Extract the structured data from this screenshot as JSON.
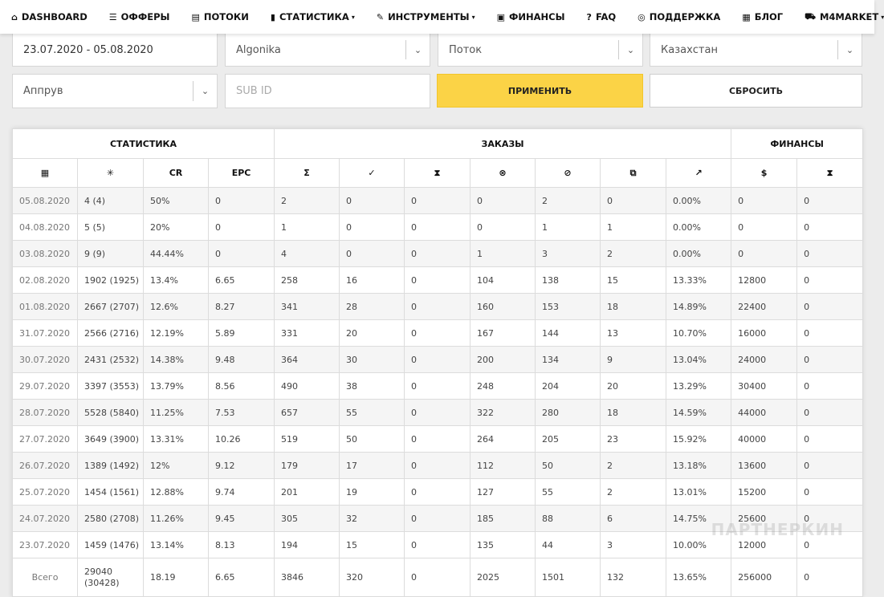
{
  "nav": [
    {
      "icon": "⌂",
      "icon_name": "home-icon",
      "label": "DASHBOARD",
      "dropdown": false
    },
    {
      "icon": "☰",
      "icon_name": "list-icon",
      "label": "ОФФЕРЫ",
      "dropdown": false
    },
    {
      "icon": "▤",
      "icon_name": "stack-icon",
      "label": "ПОТОКИ",
      "dropdown": false
    },
    {
      "icon": "▮",
      "icon_name": "bar-chart-icon",
      "label": "СТАТИСТИКА",
      "dropdown": true
    },
    {
      "icon": "✎",
      "icon_name": "wrench-icon",
      "label": "ИНСТРУМЕНТЫ",
      "dropdown": true
    },
    {
      "icon": "▣",
      "icon_name": "money-icon",
      "label": "ФИНАНСЫ",
      "dropdown": false
    },
    {
      "icon": "?",
      "icon_name": "question-icon",
      "label": "FAQ",
      "dropdown": false
    },
    {
      "icon": "◎",
      "icon_name": "support-icon",
      "label": "ПОДДЕРЖКА",
      "dropdown": false
    },
    {
      "icon": "▦",
      "icon_name": "newspaper-icon",
      "label": "БЛОГ",
      "dropdown": false
    },
    {
      "icon": "⛟",
      "icon_name": "cart-icon",
      "label": "M4MARKET",
      "dropdown": true
    }
  ],
  "filters": {
    "date_range": "23.07.2020 - 05.08.2020",
    "offer": "Algonika",
    "stream": "Поток",
    "country": "Казахстан",
    "status": "Аппрув",
    "subid_placeholder": "SUB ID",
    "apply_label": "ПРИМЕНИТЬ",
    "reset_label": "СБРОСИТЬ"
  },
  "table": {
    "groups": {
      "stats": "СТАТИСТИКА",
      "orders": "ЗАКАЗЫ",
      "finance": "ФИНАНСЫ"
    },
    "col_headers": [
      {
        "text": "▦",
        "name": "calendar-icon",
        "cls": "ic-dark"
      },
      {
        "text": "✳",
        "name": "click-icon",
        "cls": "ic-dark"
      },
      {
        "text": "CR",
        "name": "cr-header",
        "cls": ""
      },
      {
        "text": "EPC",
        "name": "epc-header",
        "cls": ""
      },
      {
        "text": "Σ",
        "name": "sigma-icon",
        "cls": "ic-dark"
      },
      {
        "text": "✓",
        "name": "check-circle-icon",
        "cls": "ic-green"
      },
      {
        "text": "⧗",
        "name": "hourglass-icon",
        "cls": "ic-yellow"
      },
      {
        "text": "⊗",
        "name": "cancel-circle-icon",
        "cls": "ic-red"
      },
      {
        "text": "⊘",
        "name": "ban-icon",
        "cls": "ic-red"
      },
      {
        "text": "⧉",
        "name": "copy-icon",
        "cls": "ic-dark"
      },
      {
        "text": "↗",
        "name": "trend-up-icon",
        "cls": "ic-dark"
      },
      {
        "text": "$",
        "name": "dollar-icon",
        "cls": "ic-green"
      },
      {
        "text": "⧗",
        "name": "hourglass-icon",
        "cls": "ic-yellow"
      }
    ],
    "rows": [
      [
        "05.08.2020",
        "4 (4)",
        "50%",
        "0",
        "2",
        "0",
        "0",
        "0",
        "2",
        "0",
        "0.00%",
        "0",
        "0"
      ],
      [
        "04.08.2020",
        "5 (5)",
        "20%",
        "0",
        "1",
        "0",
        "0",
        "0",
        "1",
        "1",
        "0.00%",
        "0",
        "0"
      ],
      [
        "03.08.2020",
        "9 (9)",
        "44.44%",
        "0",
        "4",
        "0",
        "0",
        "1",
        "3",
        "2",
        "0.00%",
        "0",
        "0"
      ],
      [
        "02.08.2020",
        "1902 (1925)",
        "13.4%",
        "6.65",
        "258",
        "16",
        "0",
        "104",
        "138",
        "15",
        "13.33%",
        "12800",
        "0"
      ],
      [
        "01.08.2020",
        "2667 (2707)",
        "12.6%",
        "8.27",
        "341",
        "28",
        "0",
        "160",
        "153",
        "18",
        "14.89%",
        "22400",
        "0"
      ],
      [
        "31.07.2020",
        "2566 (2716)",
        "12.19%",
        "5.89",
        "331",
        "20",
        "0",
        "167",
        "144",
        "13",
        "10.70%",
        "16000",
        "0"
      ],
      [
        "30.07.2020",
        "2431 (2532)",
        "14.38%",
        "9.48",
        "364",
        "30",
        "0",
        "200",
        "134",
        "9",
        "13.04%",
        "24000",
        "0"
      ],
      [
        "29.07.2020",
        "3397 (3553)",
        "13.79%",
        "8.56",
        "490",
        "38",
        "0",
        "248",
        "204",
        "20",
        "13.29%",
        "30400",
        "0"
      ],
      [
        "28.07.2020",
        "5528 (5840)",
        "11.25%",
        "7.53",
        "657",
        "55",
        "0",
        "322",
        "280",
        "18",
        "14.59%",
        "44000",
        "0"
      ],
      [
        "27.07.2020",
        "3649 (3900)",
        "13.31%",
        "10.26",
        "519",
        "50",
        "0",
        "264",
        "205",
        "23",
        "15.92%",
        "40000",
        "0"
      ],
      [
        "26.07.2020",
        "1389 (1492)",
        "12%",
        "9.12",
        "179",
        "17",
        "0",
        "112",
        "50",
        "2",
        "13.18%",
        "13600",
        "0"
      ],
      [
        "25.07.2020",
        "1454 (1561)",
        "12.88%",
        "9.74",
        "201",
        "19",
        "0",
        "127",
        "55",
        "2",
        "13.01%",
        "15200",
        "0"
      ],
      [
        "24.07.2020",
        "2580 (2708)",
        "11.26%",
        "9.45",
        "305",
        "32",
        "0",
        "185",
        "88",
        "6",
        "14.75%",
        "25600",
        "0"
      ],
      [
        "23.07.2020",
        "1459 (1476)",
        "13.14%",
        "8.13",
        "194",
        "15",
        "0",
        "135",
        "44",
        "3",
        "10.00%",
        "12000",
        "0"
      ]
    ],
    "total": [
      "Всего",
      "29040 (30428)",
      "18.19",
      "6.65",
      "3846",
      "320",
      "0",
      "2025",
      "1501",
      "132",
      "13.65%",
      "256000",
      "0"
    ]
  },
  "watermark": "ПАРТНЕРКИН"
}
